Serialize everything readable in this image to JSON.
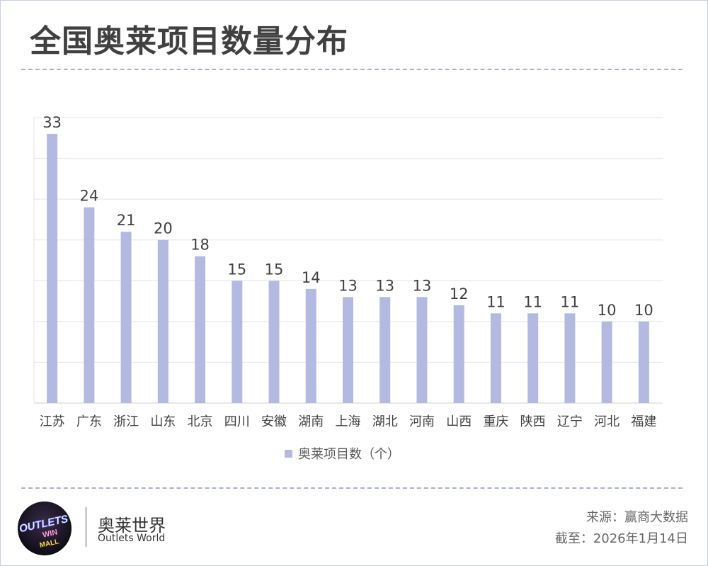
{
  "title": "全国奥莱项目数量分布",
  "legend_label": "奥莱项目数（个）",
  "brand": {
    "logo_text": [
      "OUTLETS",
      "WIN",
      "MALL"
    ],
    "name_cn": "奥莱世界",
    "name_en": "Outlets World"
  },
  "source_line": "来源：赢商大数据",
  "date_line": "截至：2026年1月14日",
  "colors": {
    "bar": "#b4b9e2",
    "grid": "#e4e4e4",
    "dash": "#a9b0d4",
    "title": "#404040"
  },
  "chart_data": {
    "type": "bar",
    "title": "全国奥莱项目数量分布",
    "xlabel": "",
    "ylabel": "",
    "categories": [
      "江苏",
      "广东",
      "浙江",
      "山东",
      "北京",
      "四川",
      "安徽",
      "湖南",
      "上海",
      "湖北",
      "河南",
      "山西",
      "重庆",
      "陕西",
      "辽宁",
      "河北",
      "福建"
    ],
    "series": [
      {
        "name": "奥莱项目数（个）",
        "values": [
          33,
          24,
          21,
          20,
          18,
          15,
          15,
          14,
          13,
          13,
          13,
          12,
          11,
          11,
          11,
          10,
          10
        ]
      }
    ],
    "ylim": [
      0,
      35
    ],
    "grid": true,
    "legend": "bottom",
    "data_labels": true
  }
}
